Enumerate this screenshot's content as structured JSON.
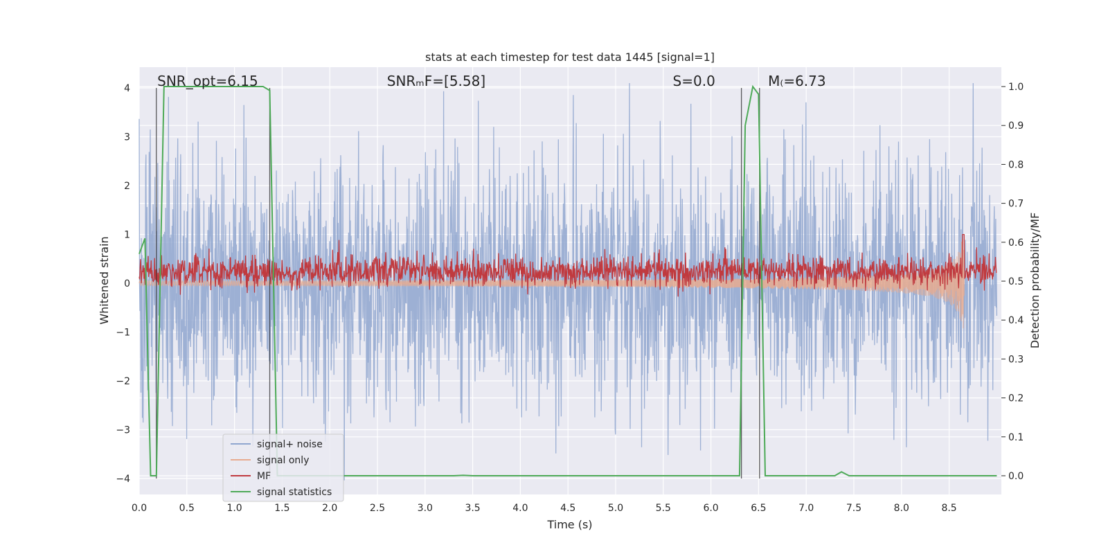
{
  "chart_data": {
    "type": "line",
    "title": "stats at each timestep for test data 1445 [signal=1]",
    "xlabel": "Time (s)",
    "ylabel": "Whitened strain",
    "y2label": "Detection probability/MF",
    "xlim": [
      0.0,
      9.0
    ],
    "ylim": [
      -4.3,
      4.4
    ],
    "y2lim": [
      -0.05,
      1.05
    ],
    "xticks": [
      0.0,
      0.5,
      1.0,
      1.5,
      2.0,
      2.5,
      3.0,
      3.5,
      4.0,
      4.5,
      5.0,
      5.5,
      6.0,
      6.5,
      7.0,
      7.5,
      8.0,
      8.5
    ],
    "xtick_labels": [
      "0.0",
      "0.5",
      "1.0",
      "1.5",
      "2.0",
      "2.5",
      "3.0",
      "3.5",
      "4.0",
      "4.5",
      "5.0",
      "5.5",
      "6.0",
      "6.5",
      "7.0",
      "7.5",
      "8.0",
      "8.5"
    ],
    "yticks": [
      4,
      3,
      2,
      1,
      0,
      -1,
      -2,
      -3,
      -4
    ],
    "ytick_labels": [
      "4",
      "3",
      "2",
      "1",
      "0",
      "−1",
      "−2",
      "−3",
      "−4"
    ],
    "y2ticks": [
      1.0,
      0.9,
      0.8,
      0.7,
      0.6,
      0.5,
      0.4,
      0.3,
      0.2,
      0.1,
      0.0
    ],
    "y2tick_labels": [
      "1.0",
      "0.9",
      "0.8",
      "0.7",
      "0.6",
      "0.5",
      "0.4",
      "0.3",
      "0.2",
      "0.1",
      "0.0"
    ],
    "grid": true,
    "legend_position": "lower-left",
    "annotations": [
      {
        "text": "SNR_opt=6.15",
        "x": 0.19
      },
      {
        "text": "SNRₘF=[5.58]",
        "x": 2.6
      },
      {
        "text": "S=0.0",
        "x": 5.6
      },
      {
        "text": "M₍=6.73",
        "x": 6.6
      }
    ],
    "series": [
      {
        "name": "signal+ noise",
        "color": "#8fa6cf",
        "axis": "left",
        "note": "noise-dominated whitened strain, roughly within ±4",
        "sample_points": [
          [
            0.0,
            1.2
          ],
          [
            0.5,
            -2.5
          ],
          [
            1.0,
            2.8
          ],
          [
            1.5,
            -3.0
          ],
          [
            2.0,
            2.5
          ],
          [
            2.4,
            -3.7
          ],
          [
            3.0,
            3.3
          ],
          [
            3.5,
            -2.8
          ],
          [
            4.0,
            3.1
          ],
          [
            4.5,
            -2.6
          ],
          [
            5.0,
            3.2
          ],
          [
            5.5,
            -3.6
          ],
          [
            6.0,
            4.0
          ],
          [
            6.5,
            -2.5
          ],
          [
            7.0,
            2.7
          ],
          [
            7.5,
            -3.2
          ],
          [
            8.0,
            3.0
          ],
          [
            8.5,
            -3.4
          ],
          [
            9.0,
            2.0
          ]
        ]
      },
      {
        "name": "signal only",
        "color": "#e8ab8f",
        "axis": "left",
        "note": "chirp growing in amplitude, merger near 8.65 s",
        "sample_points": [
          [
            0.0,
            0.0
          ],
          [
            5.0,
            0.05
          ],
          [
            6.0,
            0.1
          ],
          [
            7.0,
            0.2
          ],
          [
            8.0,
            0.35
          ],
          [
            8.5,
            0.5
          ],
          [
            8.65,
            0.9
          ],
          [
            8.66,
            -0.9
          ],
          [
            8.7,
            0.0
          ],
          [
            9.0,
            0.0
          ]
        ]
      },
      {
        "name": "MF",
        "color": "#c03a3f",
        "axis": "right",
        "note": "matched filter output fluctuating around 0.53, peak 0.62 at ~8.65 s",
        "sample_points": [
          [
            0.0,
            0.52
          ],
          [
            0.5,
            0.53
          ],
          [
            1.0,
            0.52
          ],
          [
            1.5,
            0.53
          ],
          [
            2.0,
            0.52
          ],
          [
            2.5,
            0.53
          ],
          [
            3.0,
            0.53
          ],
          [
            3.5,
            0.52
          ],
          [
            4.0,
            0.52
          ],
          [
            4.5,
            0.53
          ],
          [
            5.0,
            0.52
          ],
          [
            5.5,
            0.53
          ],
          [
            6.0,
            0.52
          ],
          [
            6.5,
            0.53
          ],
          [
            7.0,
            0.52
          ],
          [
            7.5,
            0.53
          ],
          [
            8.0,
            0.52
          ],
          [
            8.5,
            0.53
          ],
          [
            8.65,
            0.62
          ],
          [
            9.0,
            0.52
          ]
        ]
      },
      {
        "name": "signal statistics",
        "color": "#4daa57",
        "axis": "right",
        "points": [
          [
            0.0,
            0.57
          ],
          [
            0.06,
            0.61
          ],
          [
            0.12,
            0.0
          ],
          [
            0.18,
            0.0
          ],
          [
            0.26,
            1.0
          ],
          [
            0.7,
            1.0
          ],
          [
            1.3,
            1.0
          ],
          [
            1.37,
            0.99
          ],
          [
            1.45,
            0.0
          ],
          [
            3.3,
            0.0
          ],
          [
            3.4,
            0.001
          ],
          [
            3.5,
            0.0
          ],
          [
            6.3,
            0.0
          ],
          [
            6.36,
            0.9
          ],
          [
            6.44,
            1.0
          ],
          [
            6.5,
            0.98
          ],
          [
            6.57,
            0.0
          ],
          [
            7.3,
            0.0
          ],
          [
            7.37,
            0.01
          ],
          [
            7.45,
            0.0
          ],
          [
            9.0,
            0.0
          ]
        ]
      }
    ],
    "vertical_lines": [
      0.18,
      1.37,
      6.32,
      6.51
    ]
  }
}
